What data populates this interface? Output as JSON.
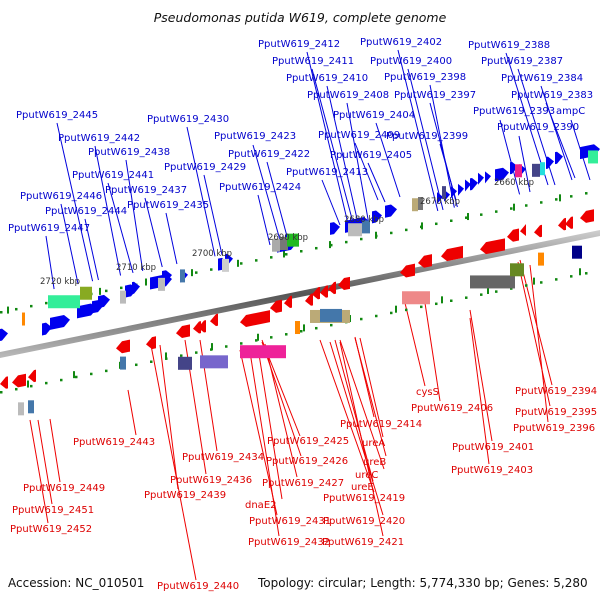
{
  "title": "Pseudomonas putida W619, complete genome",
  "footer": {
    "accession": "Accession: NC_010501",
    "summary": "Topology: circular; Length: 5,774,330 bp; Genes: 5,280"
  },
  "colors": {
    "forward_label": "#0000cc",
    "reverse_label": "#dd0000",
    "forward_gene": "#0000ee",
    "reverse_gene": "#ee0000",
    "backbone": "#777777",
    "tick": "#118811"
  },
  "scale_ticks": [
    {
      "label": "2720 kbp",
      "kbp": 2720
    },
    {
      "label": "2710 kbp",
      "kbp": 2710
    },
    {
      "label": "2700 kbp",
      "kbp": 2700
    },
    {
      "label": "2690 kbp",
      "kbp": 2690
    },
    {
      "label": "2680 kbp",
      "kbp": 2680
    },
    {
      "label": "2670 kbp",
      "kbp": 2670
    },
    {
      "label": "2660 kbp",
      "kbp": 2660
    }
  ],
  "forward_labels": [
    {
      "text": "PputW619_2412"
    },
    {
      "text": "PputW619_2402"
    },
    {
      "text": "PputW619_2388"
    },
    {
      "text": "PputW619_2411"
    },
    {
      "text": "PputW619_2400"
    },
    {
      "text": "PputW619_2387"
    },
    {
      "text": "PputW619_2410"
    },
    {
      "text": "PputW619_2398"
    },
    {
      "text": "PputW619_2384"
    },
    {
      "text": "PputW619_2408"
    },
    {
      "text": "PputW619_2397"
    },
    {
      "text": "PputW619_2383"
    },
    {
      "text": "PputW619_2445"
    },
    {
      "text": "PputW619_2404"
    },
    {
      "text": "PputW619_2393"
    },
    {
      "text": "ampC"
    },
    {
      "text": "PputW619_2430"
    },
    {
      "text": "PputW619_2390"
    },
    {
      "text": "PputW619_2442"
    },
    {
      "text": "PputW619_2423"
    },
    {
      "text": "PputW619_2409"
    },
    {
      "text": "PputW619_2399"
    },
    {
      "text": "PputW619_2438"
    },
    {
      "text": "PputW619_2422"
    },
    {
      "text": "PputW619_2405"
    },
    {
      "text": "PputW619_2441"
    },
    {
      "text": "PputW619_2429"
    },
    {
      "text": "PputW619_2413"
    },
    {
      "text": "PputW619_2437"
    },
    {
      "text": "PputW619_2424"
    },
    {
      "text": "PputW619_2446"
    },
    {
      "text": "PputW619_2444"
    },
    {
      "text": "PputW619_2435"
    },
    {
      "text": "PputW619_2447"
    }
  ],
  "reverse_labels": [
    {
      "text": "cysS"
    },
    {
      "text": "PputW619_2394"
    },
    {
      "text": "PputW619_2406"
    },
    {
      "text": "PputW619_2395"
    },
    {
      "text": "PputW619_2414"
    },
    {
      "text": "PputW619_2396"
    },
    {
      "text": "ureA"
    },
    {
      "text": "PputW619_2443"
    },
    {
      "text": "PputW619_2425"
    },
    {
      "text": "PputW619_2401"
    },
    {
      "text": "PputW619_2434"
    },
    {
      "text": "ureB"
    },
    {
      "text": "PputW619_2426"
    },
    {
      "text": "ureC"
    },
    {
      "text": "PputW619_2403"
    },
    {
      "text": "PputW619_2436"
    },
    {
      "text": "PputW619_2427"
    },
    {
      "text": "ureE"
    },
    {
      "text": "PputW619_2449"
    },
    {
      "text": "PputW619_2439"
    },
    {
      "text": "dnaE2"
    },
    {
      "text": "PputW619_2419"
    },
    {
      "text": "PputW619_2451"
    },
    {
      "text": "PputW619_2431"
    },
    {
      "text": "PputW619_2420"
    },
    {
      "text": "PputW619_2452"
    },
    {
      "text": "PputW619_2432"
    },
    {
      "text": "PputW619_2421"
    },
    {
      "text": "PputW619_2440"
    }
  ]
}
